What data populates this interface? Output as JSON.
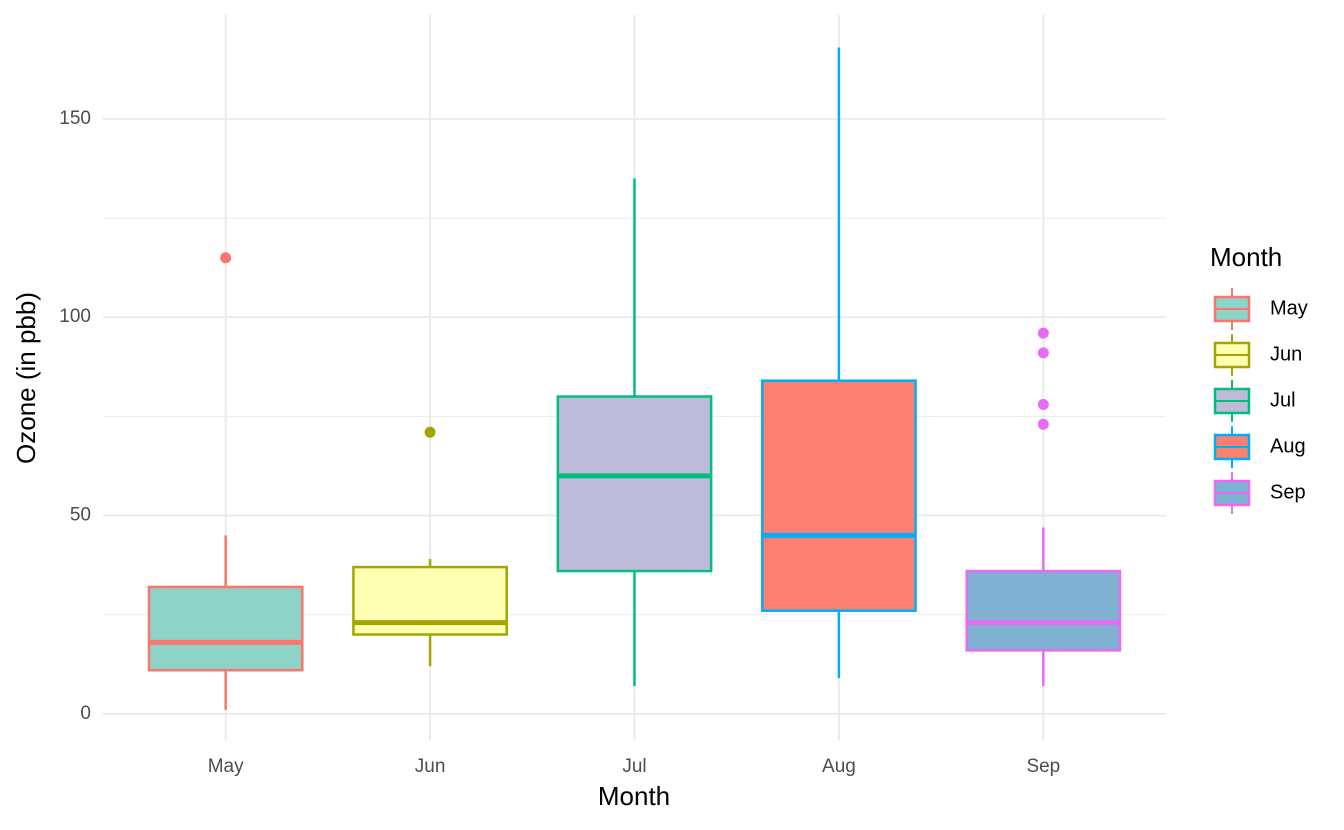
{
  "chart_data": {
    "type": "box",
    "x_label": "Month",
    "y_label": "Ozone (in pbb)",
    "categories": [
      "May",
      "Jun",
      "Jul",
      "Aug",
      "Sep"
    ],
    "legend_title": "Month",
    "legend_position": "right",
    "grid": true,
    "ylim": [
      -6.6,
      176.2
    ],
    "yticks": [
      0,
      50,
      100,
      150
    ],
    "minor_yticks": [
      25,
      75,
      125
    ],
    "boxes": [
      {
        "name": "May",
        "color": "#F8766D",
        "fill": "#8dd3c7",
        "min": 1,
        "q1": 11,
        "median": 18,
        "q3": 32,
        "max": 45,
        "outliers": [
          115
        ]
      },
      {
        "name": "Jun",
        "color": "#A3A500",
        "fill": "#ffffb3",
        "min": 12,
        "q1": 20,
        "median": 23,
        "q3": 37,
        "max": 39,
        "outliers": [
          71
        ]
      },
      {
        "name": "Jul",
        "color": "#00BF7D",
        "fill": "#bebada",
        "min": 7,
        "q1": 36,
        "median": 60,
        "q3": 80,
        "max": 135,
        "outliers": []
      },
      {
        "name": "Aug",
        "color": "#00B0F6",
        "fill": "#fb8072",
        "min": 9,
        "q1": 26,
        "median": 45,
        "q3": 84,
        "max": 168,
        "outliers": []
      },
      {
        "name": "Sep",
        "color": "#E76BF3",
        "fill": "#80b1d3",
        "min": 7,
        "q1": 16,
        "median": 23,
        "q3": 36,
        "max": 47,
        "outliers": [
          73,
          78,
          91,
          96
        ]
      }
    ]
  }
}
